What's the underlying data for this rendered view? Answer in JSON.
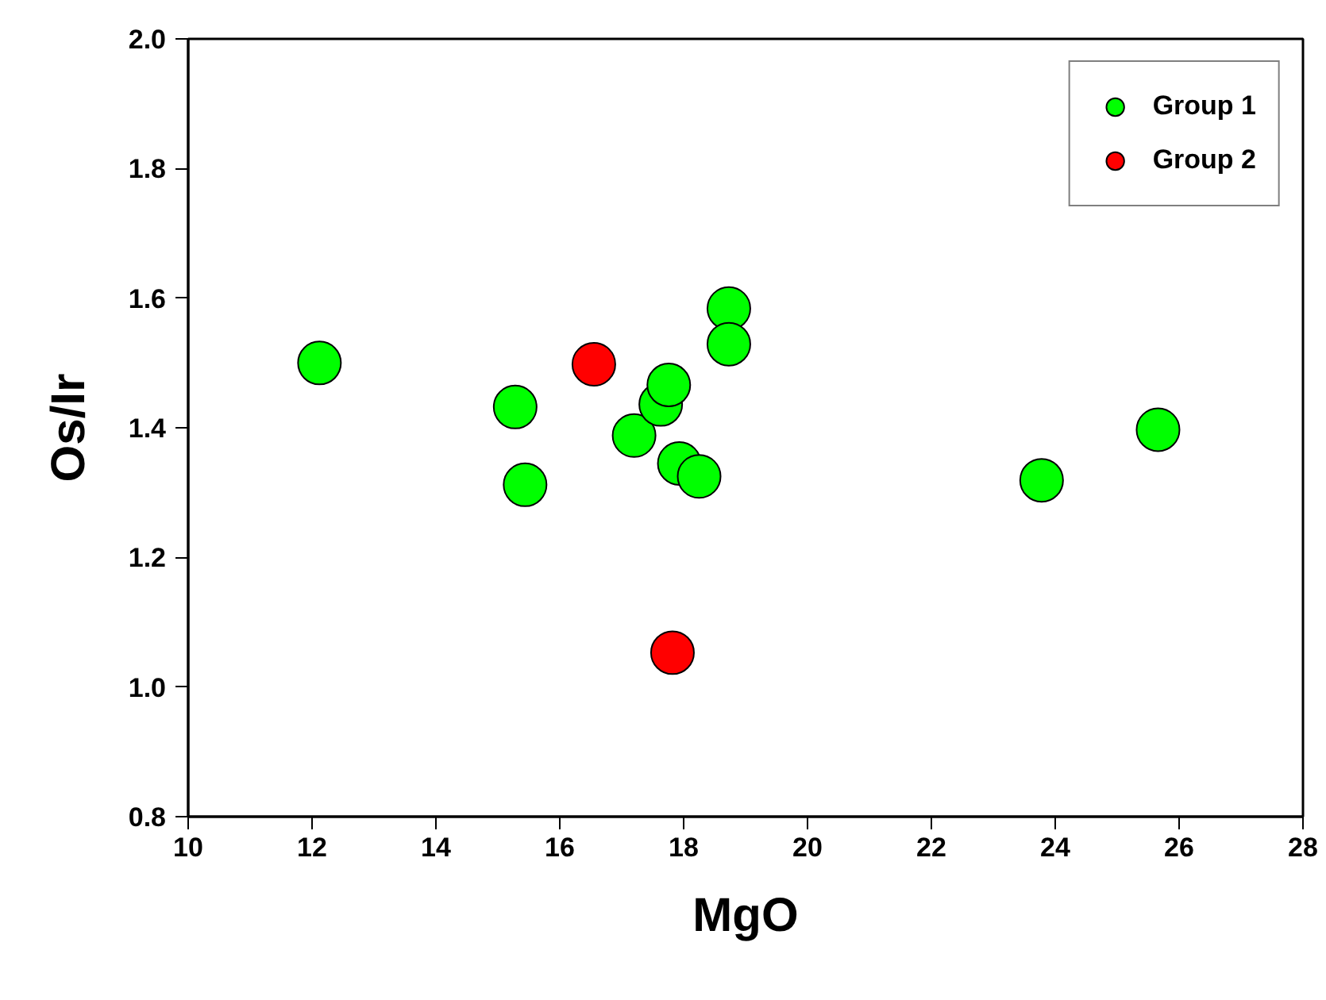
{
  "chart_data": {
    "type": "scatter",
    "xlabel": "MgO",
    "ylabel": "Os/Ir",
    "xlim": [
      10,
      28
    ],
    "xticks": [
      10,
      12,
      14,
      16,
      18,
      20,
      22,
      24,
      26,
      28
    ],
    "ylim": [
      0.8,
      2.0
    ],
    "yticks": [
      {
        "value": 0.8,
        "label": "0.8"
      },
      {
        "value": 1.0,
        "label": "1.0"
      },
      {
        "value": 1.2,
        "label": "1.2"
      },
      {
        "value": 1.4,
        "label": "1.4"
      },
      {
        "value": 1.6,
        "label": "1.6"
      },
      {
        "value": 1.8,
        "label": "1.8"
      },
      {
        "value": 2.0,
        "label": "2.0"
      }
    ],
    "grid": false,
    "legend": "top right",
    "marker": "circle",
    "series": [
      {
        "name": "Group 1",
        "color": "#00ff00",
        "x": [
          12.12,
          15.28,
          15.44,
          17.2,
          17.63,
          17.76,
          17.93,
          18.25,
          18.73,
          18.73,
          23.78,
          25.66
        ],
        "values": [
          1.5,
          1.432,
          1.312,
          1.388,
          1.436,
          1.466,
          1.345,
          1.325,
          1.584,
          1.529,
          1.319,
          1.397
        ]
      },
      {
        "name": "Group 2",
        "color": "#ff0000",
        "x": [
          16.55,
          17.82
        ],
        "values": [
          1.498,
          1.053
        ]
      }
    ]
  }
}
